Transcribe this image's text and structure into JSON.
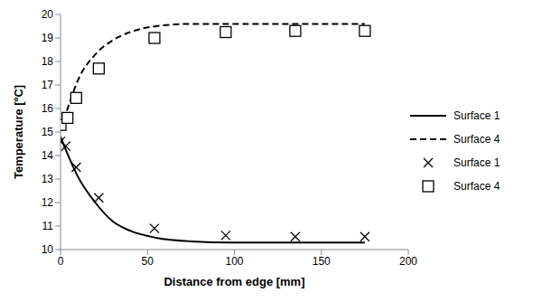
{
  "chart_data": {
    "type": "line",
    "x_label": "Distance from edge [mm]",
    "y_label": "Temperature [ºC]",
    "xlim": [
      0,
      200
    ],
    "xticks": [
      0,
      50,
      100,
      150,
      200
    ],
    "ylim": [
      10,
      20
    ],
    "yticks": [
      10,
      11,
      12,
      13,
      14,
      15,
      16,
      17,
      18,
      19,
      20
    ],
    "grid": false,
    "legend": "right",
    "series": [
      {
        "name": "Surface 1",
        "type": "line",
        "color": "#000000",
        "line_style": "solid",
        "marker": "none",
        "x": [
          0,
          5,
          10,
          20,
          30,
          40,
          55,
          75,
          100,
          125,
          150,
          175
        ],
        "values": [
          14.8,
          13.9,
          13.1,
          12.0,
          11.2,
          10.8,
          10.5,
          10.35,
          10.3,
          10.3,
          10.3,
          10.3
        ]
      },
      {
        "name": "Surface 4",
        "type": "line",
        "color": "#000000",
        "line_style": "dashed",
        "marker": "none",
        "x": [
          0,
          5,
          10,
          20,
          30,
          40,
          55,
          75,
          100,
          125,
          150,
          175
        ],
        "values": [
          15.1,
          16.2,
          17.2,
          18.3,
          18.9,
          19.25,
          19.5,
          19.6,
          19.6,
          19.6,
          19.6,
          19.6
        ]
      },
      {
        "name": "Surface 1",
        "type": "scatter",
        "color": "#000000",
        "marker": "x",
        "x": [
          0,
          3,
          9,
          22,
          54,
          95,
          135,
          175
        ],
        "values": [
          14.6,
          14.4,
          13.5,
          12.2,
          10.9,
          10.6,
          10.55,
          10.55
        ]
      },
      {
        "name": "Surface 4",
        "type": "scatter",
        "color": "#000000",
        "marker": "square",
        "x": [
          0,
          4,
          9,
          22,
          54,
          95,
          135,
          175
        ],
        "values": [
          15.3,
          15.6,
          16.45,
          17.7,
          19.0,
          19.25,
          19.3,
          19.3
        ]
      }
    ]
  }
}
